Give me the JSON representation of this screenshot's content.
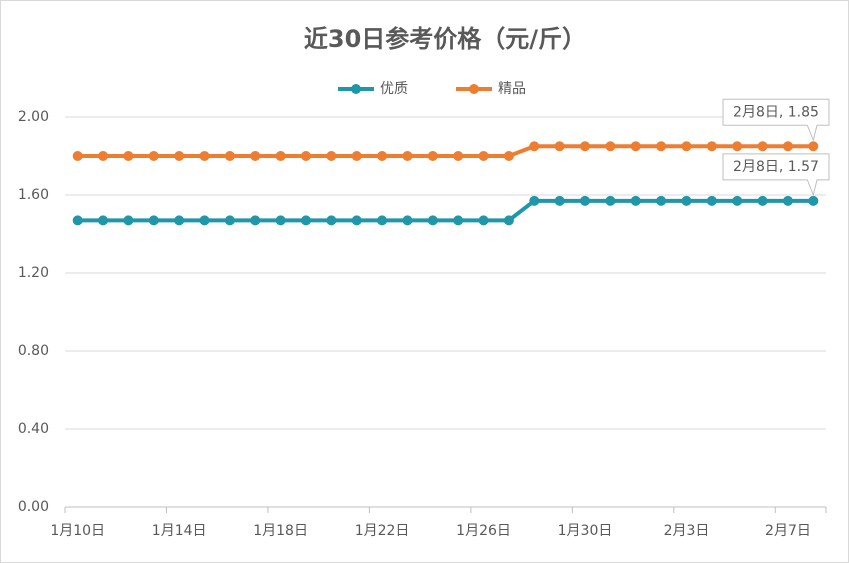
{
  "chart_data": {
    "type": "line",
    "title": "近30日参考价格（元/斤）",
    "categories": [
      "1月10日",
      null,
      null,
      null,
      "1月14日",
      null,
      null,
      null,
      "1月18日",
      null,
      null,
      null,
      "1月22日",
      null,
      null,
      null,
      "1月26日",
      null,
      null,
      null,
      "1月30日",
      null,
      null,
      null,
      "2月3日",
      null,
      null,
      null,
      "2月7日",
      null
    ],
    "series": [
      {
        "name": "优质",
        "color": "#1f97a8",
        "values": [
          1.47,
          1.47,
          1.47,
          1.47,
          1.47,
          1.47,
          1.47,
          1.47,
          1.47,
          1.47,
          1.47,
          1.47,
          1.47,
          1.47,
          1.47,
          1.47,
          1.47,
          1.47,
          1.57,
          1.57,
          1.57,
          1.57,
          1.57,
          1.57,
          1.57,
          1.57,
          1.57,
          1.57,
          1.57,
          1.57
        ]
      },
      {
        "name": "精品",
        "color": "#ed7d31",
        "values": [
          1.8,
          1.8,
          1.8,
          1.8,
          1.8,
          1.8,
          1.8,
          1.8,
          1.8,
          1.8,
          1.8,
          1.8,
          1.8,
          1.8,
          1.8,
          1.8,
          1.8,
          1.8,
          1.85,
          1.85,
          1.85,
          1.85,
          1.85,
          1.85,
          1.85,
          1.85,
          1.85,
          1.85,
          1.85,
          1.85
        ]
      }
    ],
    "annotations": [
      "2月8日, 1.57",
      "2月8日, 1.85"
    ],
    "ylim": [
      0,
      2
    ],
    "yticks": [
      {
        "value": 0,
        "label": "0.00"
      },
      {
        "value": 0.4,
        "label": "0.40"
      },
      {
        "value": 0.8,
        "label": "0.80"
      },
      {
        "value": 1.2,
        "label": "1.20"
      },
      {
        "value": 1.6,
        "label": "1.60"
      },
      {
        "value": 2,
        "label": "2.00"
      }
    ],
    "grid": true,
    "legend": "top"
  }
}
